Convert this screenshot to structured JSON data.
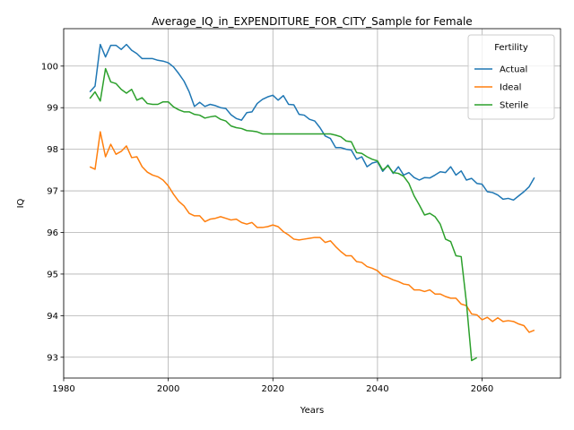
{
  "chart_data": {
    "type": "line",
    "title": "Average_IQ_in_EXPENDITURE_FOR_CITY_Sample for Female",
    "xlabel": "Years",
    "ylabel": "IQ",
    "xlim": [
      1980,
      2075
    ],
    "ylim": [
      92.5,
      100.9
    ],
    "xticks": [
      1980,
      2000,
      2020,
      2040,
      2060
    ],
    "yticks": [
      93,
      94,
      95,
      96,
      97,
      98,
      99,
      100
    ],
    "grid": true,
    "legend": {
      "title": "Fertility",
      "placement": "top-right"
    },
    "series": [
      {
        "name": "Actual",
        "color": "#1f77b4",
        "x": [
          1985,
          1986,
          1987,
          1988,
          1989,
          1990,
          1991,
          1992,
          1993,
          1994,
          1995,
          1996,
          1997,
          1998,
          1999,
          2000,
          2001,
          2002,
          2003,
          2004,
          2005,
          2006,
          2007,
          2008,
          2009,
          2010,
          2011,
          2012,
          2013,
          2014,
          2015,
          2016,
          2017,
          2018,
          2019,
          2020,
          2021,
          2022,
          2023,
          2024,
          2025,
          2026,
          2027,
          2028,
          2029,
          2030,
          2031,
          2032,
          2033,
          2034,
          2035,
          2036,
          2037,
          2038,
          2039,
          2040,
          2041,
          2042,
          2043,
          2044,
          2045,
          2046,
          2047,
          2048,
          2049,
          2050,
          2051,
          2052,
          2053,
          2054,
          2055,
          2056,
          2057,
          2058,
          2059,
          2060,
          2061,
          2062,
          2063,
          2064,
          2065,
          2066,
          2067,
          2068,
          2069,
          2070
        ],
        "values": [
          99.38,
          99.52,
          100.52,
          100.22,
          100.5,
          100.5,
          100.4,
          100.52,
          100.38,
          100.3,
          100.18,
          100.18,
          100.18,
          100.14,
          100.12,
          100.08,
          99.98,
          99.82,
          99.64,
          99.38,
          99.03,
          99.13,
          99.03,
          99.08,
          99.05,
          99.0,
          98.98,
          98.83,
          98.74,
          98.7,
          98.88,
          98.9,
          99.1,
          99.2,
          99.26,
          99.3,
          99.18,
          99.29,
          99.08,
          99.07,
          98.84,
          98.82,
          98.72,
          98.68,
          98.52,
          98.32,
          98.26,
          98.04,
          98.04,
          98.0,
          97.98,
          97.76,
          97.82,
          97.58,
          97.67,
          97.7,
          97.47,
          97.62,
          97.42,
          97.58,
          97.38,
          97.44,
          97.32,
          97.26,
          97.32,
          97.31,
          97.38,
          97.46,
          97.44,
          97.58,
          97.38,
          97.48,
          97.26,
          97.3,
          97.18,
          97.16,
          96.98,
          96.96,
          96.9,
          96.8,
          96.82,
          96.78,
          96.88,
          96.98,
          97.1,
          97.32
        ]
      },
      {
        "name": "Ideal",
        "color": "#ff7f0e",
        "x": [
          1985,
          1986,
          1987,
          1988,
          1989,
          1990,
          1991,
          1992,
          1993,
          1994,
          1995,
          1996,
          1997,
          1998,
          1999,
          2000,
          2001,
          2002,
          2003,
          2004,
          2005,
          2006,
          2007,
          2008,
          2009,
          2010,
          2011,
          2012,
          2013,
          2014,
          2015,
          2016,
          2017,
          2018,
          2019,
          2020,
          2021,
          2022,
          2023,
          2024,
          2025,
          2026,
          2027,
          2028,
          2029,
          2030,
          2031,
          2032,
          2033,
          2034,
          2035,
          2036,
          2037,
          2038,
          2039,
          2040,
          2041,
          2042,
          2043,
          2044,
          2045,
          2046,
          2047,
          2048,
          2049,
          2050,
          2051,
          2052,
          2053,
          2054,
          2055,
          2056,
          2057,
          2058,
          2059,
          2060,
          2061,
          2062,
          2063,
          2064,
          2065,
          2066,
          2067,
          2068,
          2069,
          2070
        ],
        "values": [
          97.58,
          97.52,
          98.42,
          97.82,
          98.12,
          97.88,
          97.95,
          98.08,
          97.8,
          97.82,
          97.58,
          97.45,
          97.38,
          97.34,
          97.26,
          97.12,
          96.92,
          96.75,
          96.64,
          96.46,
          96.4,
          96.4,
          96.26,
          96.32,
          96.34,
          96.38,
          96.34,
          96.3,
          96.32,
          96.24,
          96.2,
          96.24,
          96.12,
          96.12,
          96.14,
          96.18,
          96.14,
          96.02,
          95.94,
          95.84,
          95.82,
          95.84,
          95.86,
          95.88,
          95.88,
          95.76,
          95.8,
          95.66,
          95.54,
          95.44,
          95.44,
          95.3,
          95.28,
          95.18,
          95.14,
          95.08,
          94.96,
          94.92,
          94.86,
          94.82,
          94.76,
          94.74,
          94.62,
          94.62,
          94.58,
          94.62,
          94.52,
          94.52,
          94.46,
          94.42,
          94.42,
          94.28,
          94.24,
          94.04,
          94.02,
          93.9,
          93.96,
          93.86,
          93.95,
          93.86,
          93.88,
          93.86,
          93.8,
          93.76,
          93.6,
          93.65
        ]
      },
      {
        "name": "Sterile",
        "color": "#2ca02c",
        "x": [
          1985,
          1986,
          1987,
          1988,
          1989,
          1990,
          1991,
          1992,
          1993,
          1994,
          1995,
          1996,
          1997,
          1998,
          1999,
          2000,
          2001,
          2002,
          2003,
          2004,
          2005,
          2006,
          2007,
          2008,
          2009,
          2010,
          2011,
          2012,
          2013,
          2014,
          2015,
          2016,
          2017,
          2018,
          2019,
          2020,
          2021,
          2022,
          2023,
          2024,
          2025,
          2026,
          2027,
          2028,
          2029,
          2030,
          2031,
          2032,
          2033,
          2034,
          2035,
          2036,
          2037,
          2038,
          2039,
          2040,
          2041,
          2042,
          2043,
          2044,
          2045,
          2046,
          2047,
          2048,
          2049,
          2050,
          2051,
          2052,
          2053,
          2054,
          2055,
          2056,
          2057,
          2058,
          2059
        ],
        "values": [
          99.22,
          99.38,
          99.16,
          99.94,
          99.62,
          99.58,
          99.44,
          99.35,
          99.44,
          99.18,
          99.24,
          99.1,
          99.08,
          99.08,
          99.14,
          99.14,
          99.02,
          98.95,
          98.9,
          98.9,
          98.84,
          98.82,
          98.75,
          98.78,
          98.8,
          98.72,
          98.68,
          98.56,
          98.52,
          98.5,
          98.45,
          98.44,
          98.42,
          98.37,
          98.37,
          98.37,
          98.37,
          98.37,
          98.37,
          98.37,
          98.37,
          98.37,
          98.37,
          98.37,
          98.37,
          98.37,
          98.37,
          98.34,
          98.3,
          98.2,
          98.18,
          97.92,
          97.9,
          97.82,
          97.76,
          97.72,
          97.5,
          97.6,
          97.44,
          97.42,
          97.35,
          97.18,
          96.88,
          96.66,
          96.42,
          96.46,
          96.38,
          96.2,
          95.84,
          95.78,
          95.44,
          95.42,
          94.32,
          92.92,
          92.99
        ]
      }
    ]
  }
}
